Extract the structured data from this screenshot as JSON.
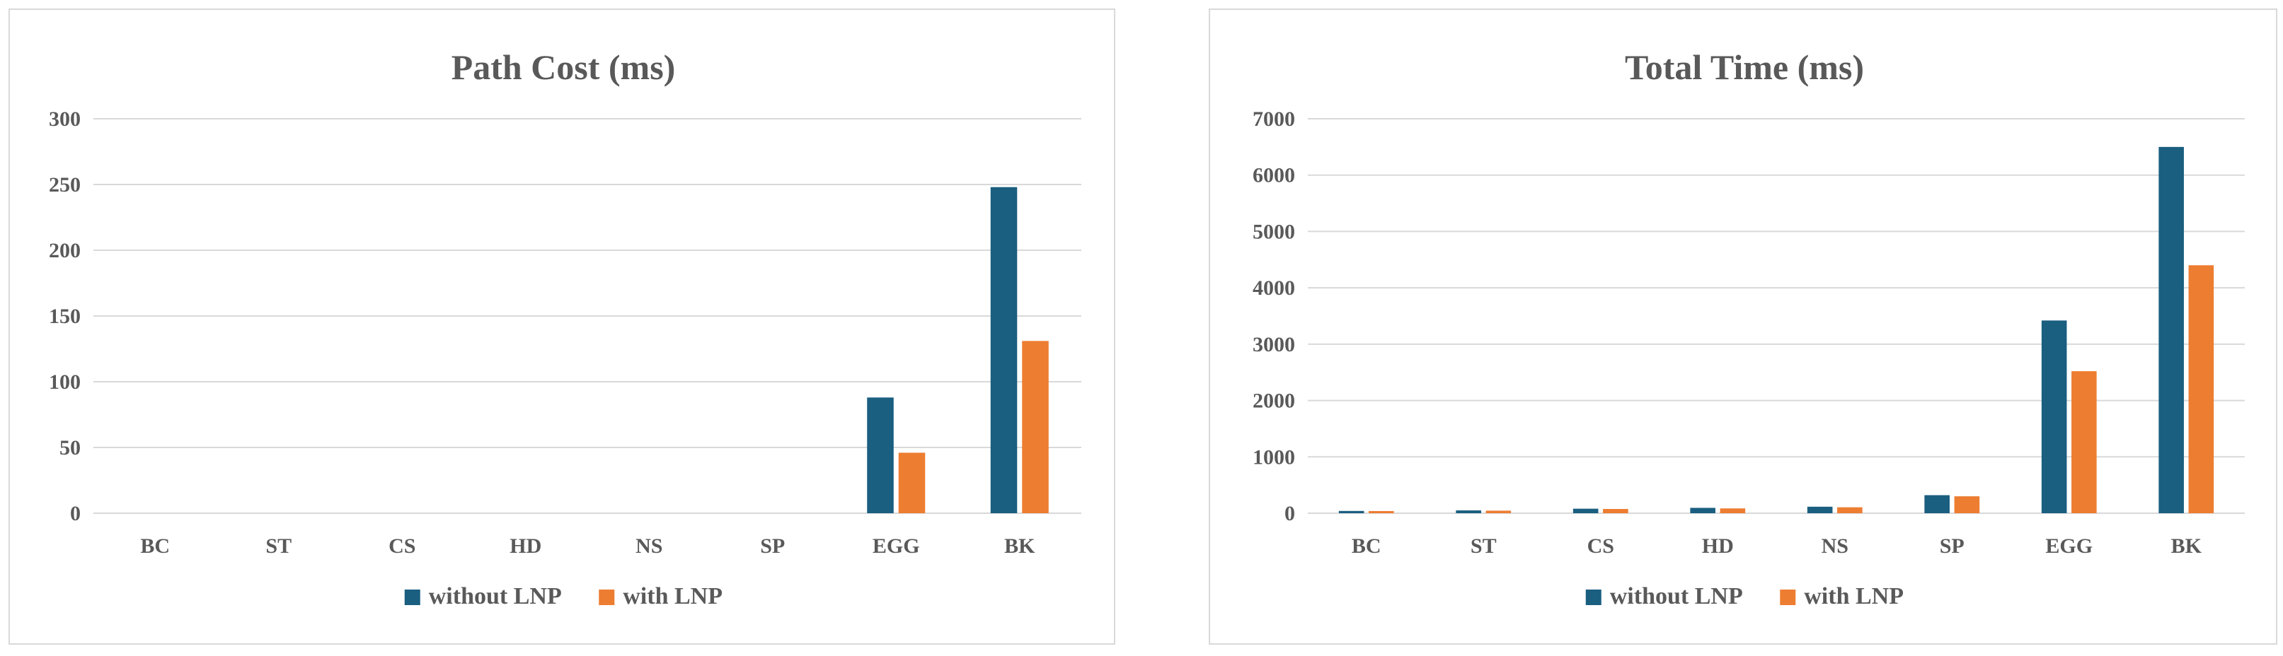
{
  "chart_data": [
    {
      "type": "bar",
      "title": "Path Cost (ms)",
      "xlabel": "",
      "ylabel": "",
      "categories": [
        "BC",
        "ST",
        "CS",
        "HD",
        "NS",
        "SP",
        "EGG",
        "BK"
      ],
      "series": [
        {
          "name": "without LNP",
          "color": "#1a5e80",
          "values": [
            0,
            0,
            0,
            0,
            0,
            0,
            88,
            248
          ]
        },
        {
          "name": "with LNP",
          "color": "#ed7d31",
          "values": [
            0,
            0,
            0,
            0,
            0,
            0,
            46,
            131
          ]
        }
      ],
      "ylim": [
        0,
        300
      ],
      "yticks": [
        0,
        50,
        100,
        150,
        200,
        250,
        300
      ],
      "grid": true,
      "legend_position": "bottom"
    },
    {
      "type": "bar",
      "title": "Total Time (ms)",
      "xlabel": "",
      "ylabel": "",
      "categories": [
        "BC",
        "ST",
        "CS",
        "HD",
        "NS",
        "SP",
        "EGG",
        "BK"
      ],
      "series": [
        {
          "name": "without LNP",
          "color": "#1a5e80",
          "values": [
            40,
            50,
            80,
            95,
            115,
            320,
            3420,
            6500
          ]
        },
        {
          "name": "with LNP",
          "color": "#ed7d31",
          "values": [
            38,
            45,
            75,
            85,
            105,
            300,
            2520,
            4400
          ]
        }
      ],
      "ylim": [
        0,
        7000
      ],
      "yticks": [
        0,
        1000,
        2000,
        3000,
        4000,
        5000,
        6000,
        7000
      ],
      "grid": true,
      "legend_position": "bottom"
    }
  ]
}
